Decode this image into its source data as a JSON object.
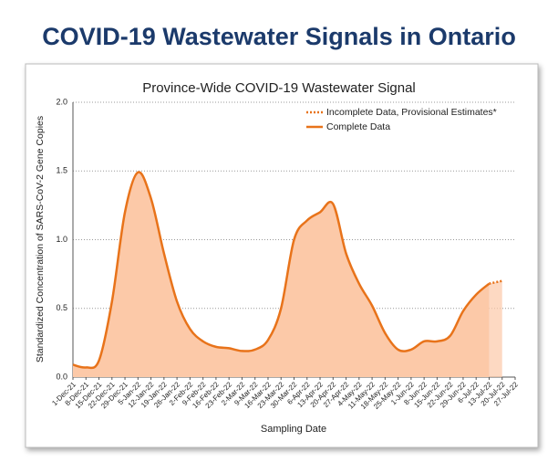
{
  "page_title": "COVID-19 Wastewater Signals in Ontario",
  "chart_data": {
    "type": "line",
    "title": "Province-Wide COVID-19 Wastewater Signal",
    "x_label": "Sampling Date",
    "y_label": "Standardized Concentration of SARS-CoV-2 Gene Copies",
    "categories": [
      "1-Dec-21",
      "8-Dec-21",
      "15-Dec-21",
      "22-Dec-21",
      "29-Dec-21",
      "5-Jan-22",
      "12-Jan-22",
      "19-Jan-22",
      "26-Jan-22",
      "2-Feb-22",
      "9-Feb-22",
      "16-Feb-22",
      "23-Feb-22",
      "2-Mar-22",
      "9-Mar-22",
      "16-Mar-22",
      "23-Mar-22",
      "30-Mar-22",
      "6-Apr-22",
      "13-Apr-22",
      "20-Apr-22",
      "27-Apr-22",
      "4-May-22",
      "11-May-22",
      "18-May-22",
      "25-May-22",
      "1-Jun-22",
      "8-Jun-22",
      "15-Jun-22",
      "22-Jun-22",
      "29-Jun-22",
      "6-Jul-22",
      "13-Jul-22",
      "20-Jul-22",
      "27-Jul-22"
    ],
    "series": [
      {
        "name": "Incomplete Data, Provisional Estimates*",
        "color": "#e8731a",
        "dashed": true,
        "values": [
          null,
          null,
          null,
          null,
          null,
          null,
          null,
          null,
          null,
          null,
          null,
          null,
          null,
          null,
          null,
          null,
          null,
          null,
          null,
          null,
          null,
          null,
          null,
          null,
          null,
          null,
          null,
          null,
          null,
          null,
          null,
          null,
          0.68,
          0.7,
          null
        ]
      },
      {
        "name": "Complete Data",
        "color": "#e8731a",
        "dashed": false,
        "values": [
          0.09,
          0.07,
          0.12,
          0.55,
          1.2,
          1.49,
          1.3,
          0.9,
          0.55,
          0.35,
          0.26,
          0.22,
          0.21,
          0.19,
          0.2,
          0.27,
          0.5,
          1.0,
          1.14,
          1.2,
          1.26,
          0.9,
          0.68,
          0.52,
          0.32,
          0.2,
          0.2,
          0.26,
          0.26,
          0.3,
          0.48,
          0.6,
          0.68,
          null,
          null
        ]
      }
    ],
    "area_color": "#fcc9a8",
    "ylim": [
      0,
      2
    ],
    "yticks": [
      {
        "value": 0,
        "label": "0.0"
      },
      {
        "value": 0.5,
        "label": "0.5"
      },
      {
        "value": 1,
        "label": "1.0"
      },
      {
        "value": 1.5,
        "label": "1.5"
      },
      {
        "value": 2,
        "label": "2.0"
      }
    ],
    "grid": true,
    "legend": "top-right"
  }
}
